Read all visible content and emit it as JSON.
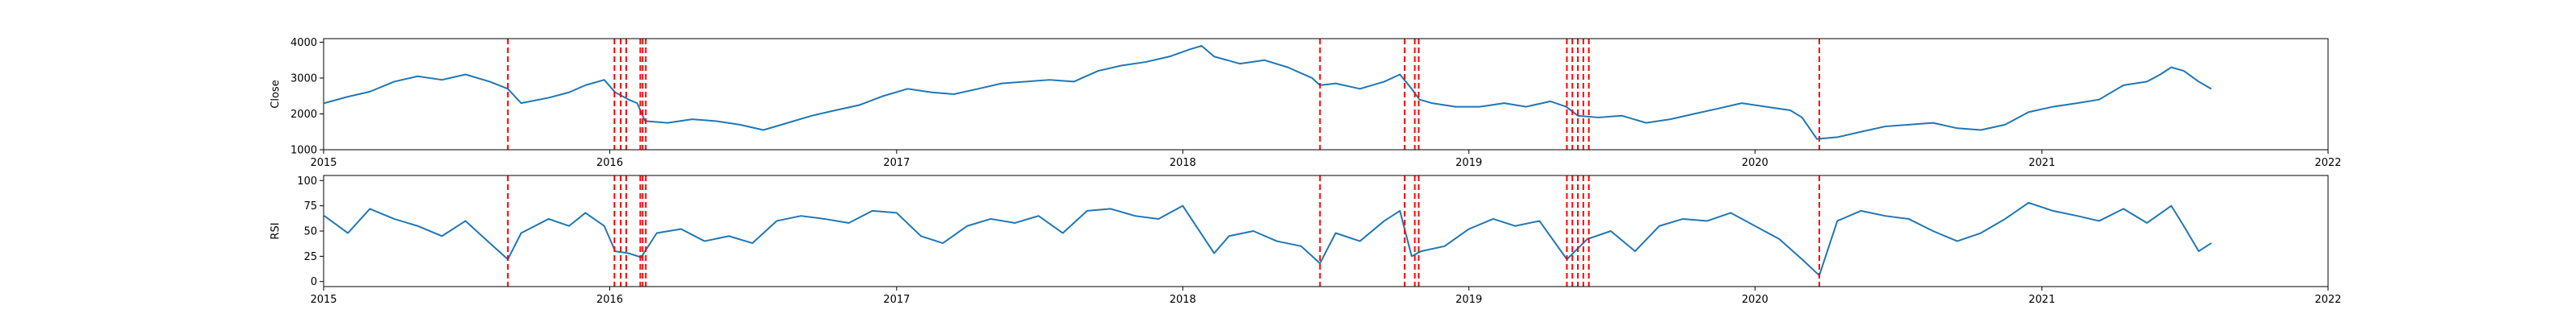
{
  "chart_data": [
    {
      "type": "line",
      "ylabel": "Close",
      "xlim": [
        "2015-01-01",
        "2022-01-01"
      ],
      "ylim": [
        1000,
        4100
      ],
      "x_ticks": [
        "2015",
        "2016",
        "2017",
        "2018",
        "2019",
        "2020",
        "2021",
        "2022"
      ],
      "y_ticks": [
        "1000",
        "2000",
        "3000",
        "4000"
      ],
      "y_tick_values": [
        1000,
        2000,
        3000,
        4000
      ],
      "grid": false,
      "line_color": "#1f77b4",
      "series": [
        {
          "values": [
            [
              "2015-01-02",
              2300
            ],
            [
              "2015-02-01",
              2480
            ],
            [
              "2015-03-01",
              2620
            ],
            [
              "2015-04-01",
              2900
            ],
            [
              "2015-05-01",
              3050
            ],
            [
              "2015-06-01",
              2950
            ],
            [
              "2015-07-01",
              3100
            ],
            [
              "2015-08-01",
              2900
            ],
            [
              "2015-08-24",
              2700
            ],
            [
              "2015-09-10",
              2300
            ],
            [
              "2015-10-15",
              2450
            ],
            [
              "2015-11-10",
              2600
            ],
            [
              "2015-12-01",
              2800
            ],
            [
              "2015-12-25",
              2950
            ],
            [
              "2016-01-08",
              2600
            ],
            [
              "2016-01-25",
              2400
            ],
            [
              "2016-02-05",
              2300
            ],
            [
              "2016-02-15",
              1800
            ],
            [
              "2016-03-15",
              1750
            ],
            [
              "2016-04-15",
              1850
            ],
            [
              "2016-05-15",
              1800
            ],
            [
              "2016-06-15",
              1700
            ],
            [
              "2016-07-15",
              1550
            ],
            [
              "2016-08-15",
              1750
            ],
            [
              "2016-09-15",
              1950
            ],
            [
              "2016-10-15",
              2100
            ],
            [
              "2016-11-15",
              2250
            ],
            [
              "2016-12-15",
              2500
            ],
            [
              "2017-01-15",
              2700
            ],
            [
              "2017-02-15",
              2600
            ],
            [
              "2017-03-15",
              2550
            ],
            [
              "2017-04-15",
              2700
            ],
            [
              "2017-05-15",
              2850
            ],
            [
              "2017-06-15",
              2900
            ],
            [
              "2017-07-15",
              2950
            ],
            [
              "2017-08-15",
              2900
            ],
            [
              "2017-09-15",
              3200
            ],
            [
              "2017-10-15",
              3350
            ],
            [
              "2017-11-15",
              3450
            ],
            [
              "2017-12-15",
              3600
            ],
            [
              "2018-01-10",
              3800
            ],
            [
              "2018-01-25",
              3900
            ],
            [
              "2018-02-10",
              3600
            ],
            [
              "2018-03-15",
              3400
            ],
            [
              "2018-04-15",
              3500
            ],
            [
              "2018-05-15",
              3300
            ],
            [
              "2018-06-15",
              3000
            ],
            [
              "2018-06-25",
              2800
            ],
            [
              "2018-07-15",
              2850
            ],
            [
              "2018-08-15",
              2700
            ],
            [
              "2018-09-15",
              2900
            ],
            [
              "2018-10-05",
              3100
            ],
            [
              "2018-10-20",
              2700
            ],
            [
              "2018-10-30",
              2400
            ],
            [
              "2018-11-15",
              2300
            ],
            [
              "2018-12-15",
              2200
            ],
            [
              "2019-01-15",
              2200
            ],
            [
              "2019-02-15",
              2300
            ],
            [
              "2019-03-15",
              2200
            ],
            [
              "2019-04-15",
              2350
            ],
            [
              "2019-05-05",
              2200
            ],
            [
              "2019-05-20",
              1950
            ],
            [
              "2019-06-15",
              1900
            ],
            [
              "2019-07-15",
              1950
            ],
            [
              "2019-08-15",
              1750
            ],
            [
              "2019-09-15",
              1850
            ],
            [
              "2019-10-15",
              2000
            ],
            [
              "2019-11-15",
              2150
            ],
            [
              "2019-12-15",
              2300
            ],
            [
              "2020-01-15",
              2200
            ],
            [
              "2020-02-15",
              2100
            ],
            [
              "2020-03-01",
              1900
            ],
            [
              "2020-03-20",
              1300
            ],
            [
              "2020-04-15",
              1350
            ],
            [
              "2020-05-15",
              1500
            ],
            [
              "2020-06-15",
              1650
            ],
            [
              "2020-07-15",
              1700
            ],
            [
              "2020-08-15",
              1750
            ],
            [
              "2020-09-15",
              1600
            ],
            [
              "2020-10-15",
              1550
            ],
            [
              "2020-11-15",
              1700
            ],
            [
              "2020-12-15",
              2050
            ],
            [
              "2021-01-15",
              2200
            ],
            [
              "2021-02-15",
              2300
            ],
            [
              "2021-03-15",
              2400
            ],
            [
              "2021-04-15",
              2800
            ],
            [
              "2021-05-15",
              2900
            ],
            [
              "2021-06-01",
              3100
            ],
            [
              "2021-06-15",
              3300
            ],
            [
              "2021-07-01",
              3200
            ],
            [
              "2021-07-20",
              2900
            ],
            [
              "2021-08-05",
              2700
            ]
          ]
        }
      ],
      "vlines": [
        "2015-08-24",
        "2016-01-07",
        "2016-01-15",
        "2016-01-22",
        "2016-02-09",
        "2016-02-12",
        "2016-02-16",
        "2018-06-25",
        "2018-10-11",
        "2018-10-24",
        "2018-10-29",
        "2019-05-06",
        "2019-05-13",
        "2019-05-20",
        "2019-05-27",
        "2019-06-03",
        "2020-03-23"
      ],
      "vline_color": "#ff0000"
    },
    {
      "type": "line",
      "ylabel": "RSI",
      "xlim": [
        "2015-01-01",
        "2022-01-01"
      ],
      "ylim": [
        -5,
        105
      ],
      "x_ticks": [
        "2015",
        "2016",
        "2017",
        "2018",
        "2019",
        "2020",
        "2021",
        "2022"
      ],
      "y_ticks": [
        "0",
        "25",
        "50",
        "75",
        "100"
      ],
      "y_tick_values": [
        0,
        25,
        50,
        75,
        100
      ],
      "grid": false,
      "line_color": "#1f77b4",
      "series": [
        {
          "values": [
            [
              "2015-01-02",
              65
            ],
            [
              "2015-02-01",
              48
            ],
            [
              "2015-03-01",
              72
            ],
            [
              "2015-04-01",
              62
            ],
            [
              "2015-05-01",
              55
            ],
            [
              "2015-06-01",
              45
            ],
            [
              "2015-07-01",
              60
            ],
            [
              "2015-08-01",
              38
            ],
            [
              "2015-08-24",
              22
            ],
            [
              "2015-09-10",
              48
            ],
            [
              "2015-10-15",
              62
            ],
            [
              "2015-11-10",
              55
            ],
            [
              "2015-12-01",
              68
            ],
            [
              "2015-12-25",
              55
            ],
            [
              "2016-01-08",
              30
            ],
            [
              "2016-01-25",
              28
            ],
            [
              "2016-02-10",
              24
            ],
            [
              "2016-03-01",
              48
            ],
            [
              "2016-04-01",
              52
            ],
            [
              "2016-05-01",
              40
            ],
            [
              "2016-06-01",
              45
            ],
            [
              "2016-07-01",
              38
            ],
            [
              "2016-08-01",
              60
            ],
            [
              "2016-09-01",
              65
            ],
            [
              "2016-10-01",
              62
            ],
            [
              "2016-11-01",
              58
            ],
            [
              "2016-12-01",
              70
            ],
            [
              "2017-01-01",
              68
            ],
            [
              "2017-02-01",
              45
            ],
            [
              "2017-03-01",
              38
            ],
            [
              "2017-04-01",
              55
            ],
            [
              "2017-05-01",
              62
            ],
            [
              "2017-06-01",
              58
            ],
            [
              "2017-07-01",
              65
            ],
            [
              "2017-08-01",
              48
            ],
            [
              "2017-09-01",
              70
            ],
            [
              "2017-10-01",
              72
            ],
            [
              "2017-11-01",
              65
            ],
            [
              "2017-12-01",
              62
            ],
            [
              "2018-01-01",
              75
            ],
            [
              "2018-02-10",
              28
            ],
            [
              "2018-03-01",
              45
            ],
            [
              "2018-04-01",
              50
            ],
            [
              "2018-05-01",
              40
            ],
            [
              "2018-06-01",
              35
            ],
            [
              "2018-06-25",
              18
            ],
            [
              "2018-07-15",
              48
            ],
            [
              "2018-08-15",
              40
            ],
            [
              "2018-09-15",
              60
            ],
            [
              "2018-10-05",
              70
            ],
            [
              "2018-10-20",
              25
            ],
            [
              "2018-11-01",
              30
            ],
            [
              "2018-12-01",
              35
            ],
            [
              "2019-01-01",
              52
            ],
            [
              "2019-02-01",
              62
            ],
            [
              "2019-03-01",
              55
            ],
            [
              "2019-04-01",
              60
            ],
            [
              "2019-05-06",
              22
            ],
            [
              "2019-06-01",
              42
            ],
            [
              "2019-07-01",
              50
            ],
            [
              "2019-08-01",
              30
            ],
            [
              "2019-09-01",
              55
            ],
            [
              "2019-10-01",
              62
            ],
            [
              "2019-11-01",
              60
            ],
            [
              "2019-12-01",
              68
            ],
            [
              "2020-01-01",
              55
            ],
            [
              "2020-02-01",
              42
            ],
            [
              "2020-03-01",
              22
            ],
            [
              "2020-03-23",
              6
            ],
            [
              "2020-04-15",
              60
            ],
            [
              "2020-05-15",
              70
            ],
            [
              "2020-06-15",
              65
            ],
            [
              "2020-07-15",
              62
            ],
            [
              "2020-08-15",
              50
            ],
            [
              "2020-09-15",
              40
            ],
            [
              "2020-10-15",
              48
            ],
            [
              "2020-11-15",
              62
            ],
            [
              "2020-12-15",
              78
            ],
            [
              "2021-01-15",
              70
            ],
            [
              "2021-02-15",
              65
            ],
            [
              "2021-03-15",
              60
            ],
            [
              "2021-04-15",
              72
            ],
            [
              "2021-05-15",
              58
            ],
            [
              "2021-06-15",
              75
            ],
            [
              "2021-07-01",
              55
            ],
            [
              "2021-07-20",
              30
            ],
            [
              "2021-08-05",
              38
            ]
          ]
        }
      ],
      "vlines": [
        "2015-08-24",
        "2016-01-07",
        "2016-01-15",
        "2016-01-22",
        "2016-02-09",
        "2016-02-12",
        "2016-02-16",
        "2018-06-25",
        "2018-10-11",
        "2018-10-24",
        "2018-10-29",
        "2019-05-06",
        "2019-05-13",
        "2019-05-20",
        "2019-05-27",
        "2019-06-03",
        "2020-03-23"
      ],
      "vline_color": "#ff0000"
    }
  ]
}
